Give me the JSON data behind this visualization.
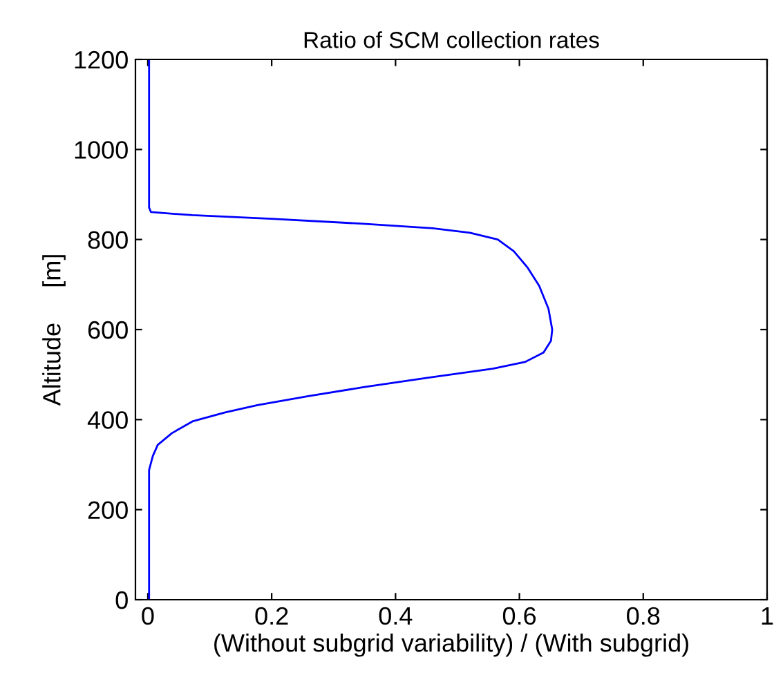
{
  "chart_data": {
    "type": "line",
    "title": "Ratio of SCM collection rates",
    "xlabel": "(Without subgrid variability) / (With subgrid)",
    "ylabel": "Altitude     [m]",
    "xlim": [
      -0.02,
      1
    ],
    "ylim": [
      0,
      1200
    ],
    "xticks": [
      0,
      0.2,
      0.4,
      0.6,
      0.8,
      1
    ],
    "yticks": [
      0,
      200,
      400,
      600,
      800,
      1000,
      1200
    ],
    "grid": false,
    "legend": false,
    "marker": "none",
    "line_style": "solid",
    "series": [
      {
        "color": "#0000ff",
        "x": [
          0.002,
          0.002,
          0.008,
          0.016,
          0.039,
          0.072,
          0.125,
          0.177,
          0.259,
          0.348,
          0.453,
          0.557,
          0.609,
          0.639,
          0.651,
          0.653,
          0.647,
          0.632,
          0.613,
          0.591,
          0.565,
          0.52,
          0.46,
          0.348,
          0.199,
          0.072,
          0.005,
          0.002,
          0.002
        ],
        "values": [
          0,
          288,
          319,
          344,
          370,
          396,
          416,
          432,
          452,
          472,
          493,
          513,
          528,
          549,
          575,
          600,
          646,
          697,
          738,
          774,
          800,
          815,
          825,
          835,
          846,
          854,
          861,
          871,
          1200
        ]
      }
    ]
  }
}
